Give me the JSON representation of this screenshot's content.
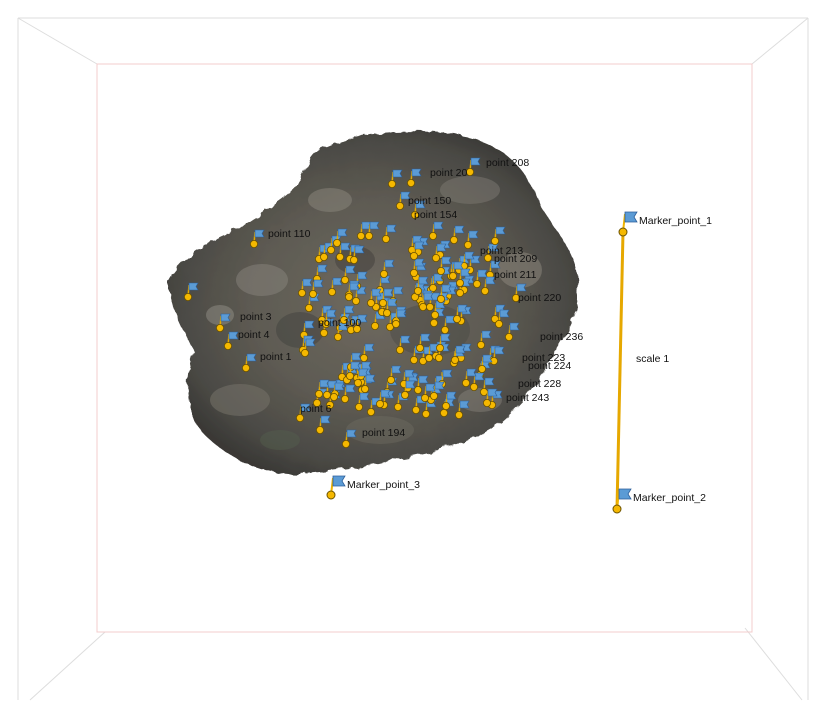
{
  "viewport": {
    "bounding_box_color": "#f3cccc",
    "outer_edge_color": "#dddddd",
    "marker_point_color": "#f5b800",
    "scale_bar_color": "#e6a800",
    "flag_color": "#5b9bd5"
  },
  "markers": [
    {
      "id": "m1",
      "label": "Marker_point_1",
      "icon": "flag-icon"
    },
    {
      "id": "m2",
      "label": "Marker_point_2",
      "icon": "flag-icon"
    },
    {
      "id": "m3",
      "label": "Marker_point_3",
      "icon": "flag-icon"
    }
  ],
  "scale_bars": [
    {
      "label": "scale 1",
      "from": "Marker_point_1",
      "to": "Marker_point_2"
    }
  ],
  "point_labels": [
    "point 208",
    "point 150",
    "point 154",
    "point 110",
    "point 213",
    "point 209",
    "point 211",
    "point 220",
    "point 3",
    "point 4",
    "point 1",
    "point 236",
    "point 223",
    "point 224",
    "point 228",
    "point 243",
    "point 6",
    "point 194",
    "point 100",
    "point 20"
  ]
}
